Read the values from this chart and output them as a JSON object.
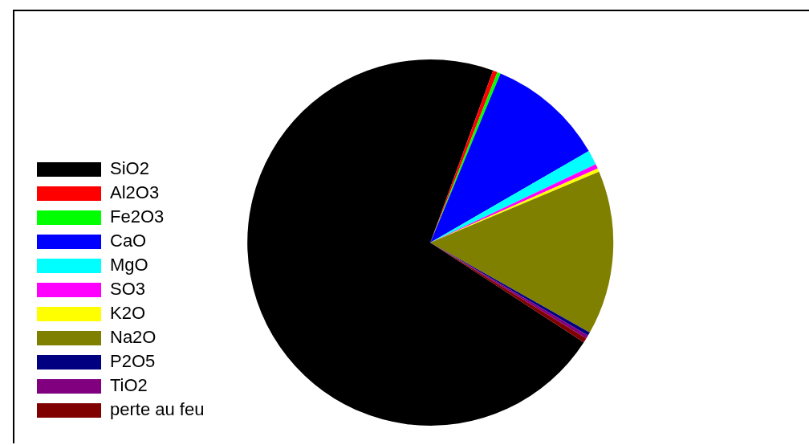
{
  "chart_data": {
    "type": "pie",
    "categories": [
      "SiO2",
      "Al2O3",
      "Fe2O3",
      "CaO",
      "MgO",
      "SO3",
      "K2O",
      "Na2O",
      "P2O5",
      "TiO2",
      "perte au feu"
    ],
    "values": [
      71.4,
      0.4,
      0.3,
      10.4,
      1.3,
      0.4,
      0.3,
      14.5,
      0.3,
      0.3,
      0.4
    ],
    "colors": [
      "#000000",
      "#ff0000",
      "#00ff00",
      "#0000ff",
      "#00ffff",
      "#ff00ff",
      "#ffff00",
      "#808000",
      "#000080",
      "#800080",
      "#800000"
    ],
    "legend": "bottom left"
  }
}
